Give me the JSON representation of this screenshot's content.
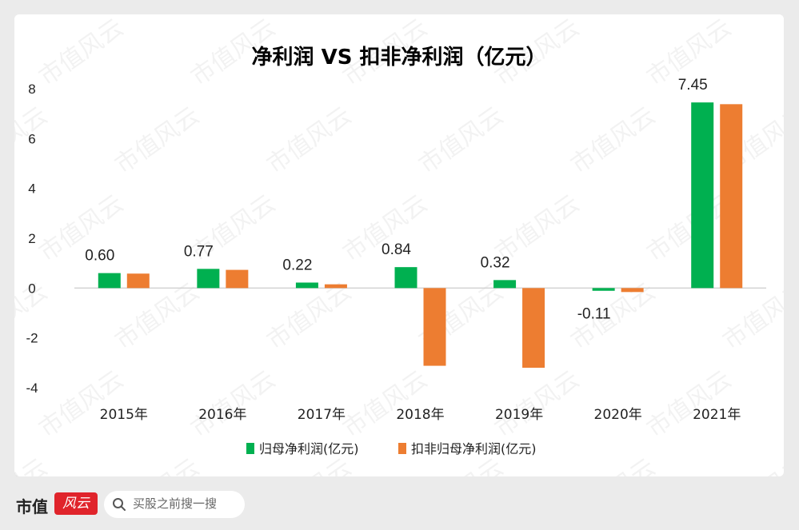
{
  "chart_data": {
    "type": "bar",
    "title": "净利润 VS 扣非净利润（亿元）",
    "categories": [
      "2015年",
      "2016年",
      "2017年",
      "2018年",
      "2019年",
      "2020年",
      "2021年"
    ],
    "series": [
      {
        "name": "归母净利润(亿元)",
        "color": "#00b050",
        "values": [
          0.6,
          0.77,
          0.22,
          0.84,
          0.32,
          -0.11,
          7.45
        ]
      },
      {
        "name": "扣非归母净利润(亿元)",
        "color": "#ed7d31",
        "values": [
          0.58,
          0.73,
          0.15,
          -3.12,
          -3.2,
          -0.16,
          7.38
        ]
      }
    ],
    "data_labels": [
      "0.60",
      "0.77",
      "0.22",
      "0.84",
      "0.32",
      "-0.11",
      "7.45"
    ],
    "ylim": [
      -4,
      8
    ],
    "yticks": [
      8,
      6,
      4,
      2,
      0,
      -2,
      -4
    ],
    "grid": false,
    "legend_position": "bottom"
  },
  "watermark": "市值风云",
  "footer": {
    "brand": "市值",
    "brand_badge": "风云",
    "search_placeholder": "买股之前搜一搜"
  }
}
